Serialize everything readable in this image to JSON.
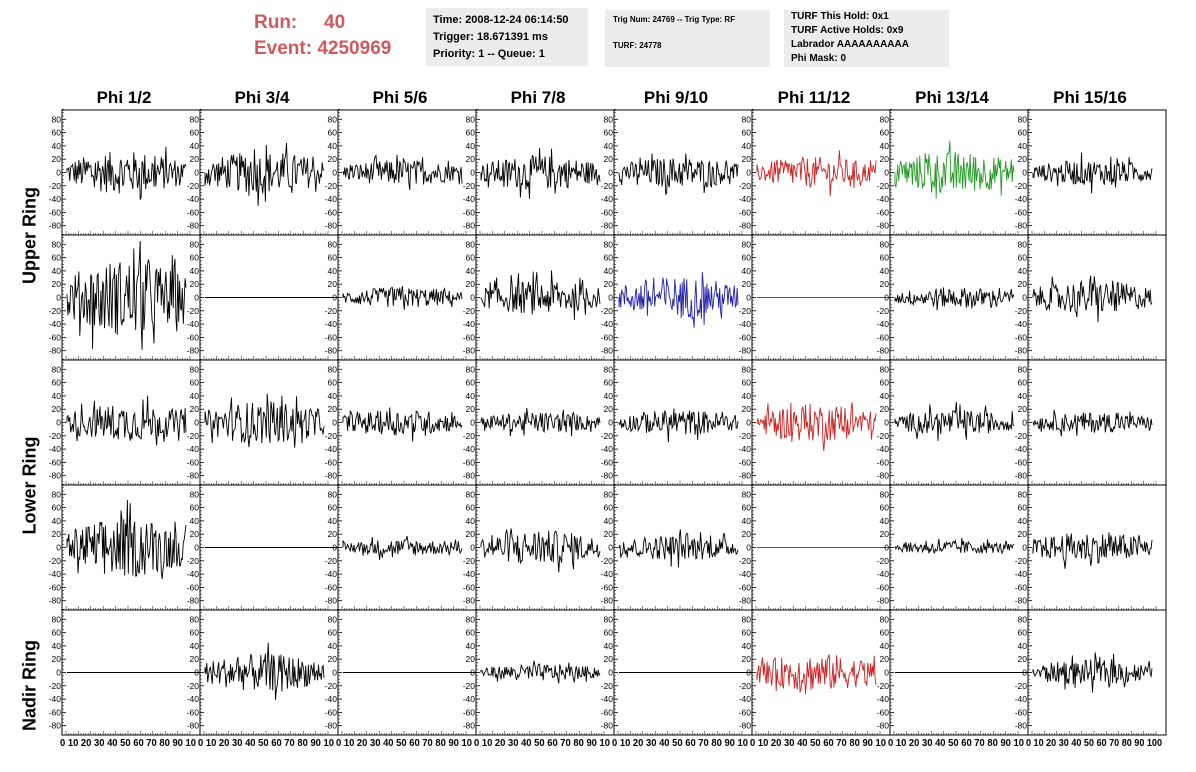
{
  "header": {
    "run_label": "Run:",
    "run_value": "40",
    "event_label": "Event:",
    "event_value": "4250969",
    "time_line": "Time: 2008-12-24 06:14:50",
    "trigger_line": "Trigger: 18.671391 ms",
    "priority_line": "Priority: 1 -- Queue: 1",
    "trig_num_line": "Trig Num: 24769 -- Trig Type: RF",
    "turf_line": "TURF: 24778",
    "turf_this_hold": "TURF This Hold: 0x1",
    "turf_active_holds": "TURF Active Holds: 0x9",
    "labrador": "Labrador AAAAAAAAAA",
    "phi_mask": "Phi Mask: 0"
  },
  "columns": [
    "Phi 1/2",
    "Phi 3/4",
    "Phi 5/6",
    "Phi 7/8",
    "Phi 9/10",
    "Phi 11/12",
    "Phi 13/14",
    "Phi 15/16"
  ],
  "ring_labels": [
    "Upper Ring",
    "Lower Ring",
    "Nadir Ring"
  ],
  "colors": {
    "black": "#000000",
    "red": "#cc2222",
    "green": "#229922",
    "blue": "#2222aa",
    "header_red": "#cd5b5b",
    "box_bg": "#ececec"
  },
  "chart_data": {
    "type": "line",
    "y_ticks": [
      "80",
      "60",
      "40",
      "20",
      "0",
      "-20",
      "-40",
      "-60",
      "-80"
    ],
    "x_ticks": [
      "0",
      "10",
      "20",
      "30",
      "40",
      "50",
      "60",
      "70",
      "80",
      "90",
      "100"
    ],
    "x_tick_labels_per_panel": [
      "0 10 20 30 40 50 60 70 80 90 10",
      "0 10 20 30 40 50 60 70 80 90 10",
      "0 10 20 30 40 50 60 70 80 90 10",
      "0 10 20 30 40 50 60 70 80 90 10",
      "0 10 20 30 40 50 60 70 80 90 10",
      "0 10 20 30 40 50 60 70 80 90 10",
      "0 10 20 30 40 50 60 70 80 90 10",
      "0 10 20 30 40 50 60 70 80 90 100"
    ],
    "xlim": [
      0,
      100
    ],
    "ylim": [
      -85,
      85
    ],
    "panel_rows": [
      {
        "ring": "Upper Ring",
        "pol": "top",
        "amps": [
          [
            25,
            "black"
          ],
          [
            25,
            "black"
          ],
          [
            15,
            "black"
          ],
          [
            20,
            "black"
          ],
          [
            18,
            "black"
          ],
          [
            18,
            "red"
          ],
          [
            25,
            "green"
          ],
          [
            15,
            "black"
          ]
        ]
      },
      {
        "ring": "Upper Ring",
        "pol": "bottom",
        "amps": [
          [
            45,
            "black"
          ],
          [
            0,
            "black"
          ],
          [
            12,
            "black"
          ],
          [
            20,
            "black"
          ],
          [
            25,
            "blue"
          ],
          [
            0,
            "red"
          ],
          [
            12,
            "black"
          ],
          [
            20,
            "black"
          ]
        ]
      },
      {
        "ring": "Lower Ring",
        "pol": "top",
        "amps": [
          [
            22,
            "black"
          ],
          [
            25,
            "black"
          ],
          [
            15,
            "black"
          ],
          [
            12,
            "black"
          ],
          [
            15,
            "black"
          ],
          [
            22,
            "red"
          ],
          [
            15,
            "black"
          ],
          [
            12,
            "black"
          ]
        ]
      },
      {
        "ring": "Lower Ring",
        "pol": "bottom",
        "amps": [
          [
            35,
            "black"
          ],
          [
            0,
            "black"
          ],
          [
            10,
            "black"
          ],
          [
            20,
            "black"
          ],
          [
            15,
            "black"
          ],
          [
            0,
            "red"
          ],
          [
            8,
            "black"
          ],
          [
            18,
            "black"
          ]
        ]
      },
      {
        "ring": "Nadir Ring",
        "pol": "single",
        "amps": [
          [
            0,
            "black"
          ],
          [
            22,
            "black"
          ],
          [
            0,
            "black"
          ],
          [
            10,
            "black"
          ],
          [
            0,
            "black"
          ],
          [
            22,
            "red"
          ],
          [
            0,
            "black"
          ],
          [
            15,
            "black"
          ]
        ]
      }
    ]
  }
}
